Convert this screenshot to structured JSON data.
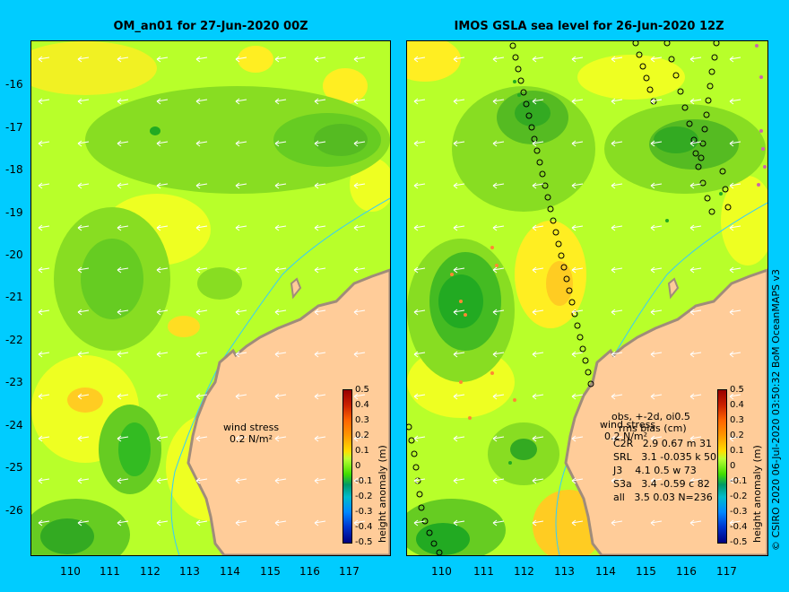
{
  "titles": {
    "left": "OM_an01 for 27-Jun-2020 00Z",
    "right": "IMOS GSLA sea level  for 26-Jun-2020 12Z"
  },
  "axes": {
    "lat_ticks": [
      "-16",
      "-17",
      "-18",
      "-19",
      "-20",
      "-21",
      "-22",
      "-23",
      "-24",
      "-25",
      "-26"
    ],
    "lon_ticks": [
      "110",
      "111",
      "112",
      "113",
      "114",
      "115",
      "116",
      "117"
    ]
  },
  "colorbar": {
    "title": "height anomaly (m)",
    "ticks": [
      "0.5",
      "0.4",
      "0.3",
      "0.2",
      "0.1",
      "0",
      "-0.1",
      "-0.2",
      "-0.3",
      "-0.4",
      "-0.5"
    ]
  },
  "wind_stress": {
    "label": "wind stress",
    "value": "0.2 N/m²"
  },
  "obs_stats": {
    "header": "obs, +-2d, oi0.5",
    "subheader": "rms bias (cm)",
    "rows": [
      "C2R   2.9 0.67 m 31",
      "SRL   3.1 -0.035 k 50",
      "J3    4.1 0.5 w 73",
      "S3a   3.4 -0.59 c 82",
      "all   3.5 0.03 N=236"
    ]
  },
  "credit": "© CSIRO 2020   06-Jul-2020 03:50:32 BoM OceanMAPS v3",
  "colors": {
    "background": "#00ccff",
    "land": "#ffcc99",
    "land_edge": "#b39b87",
    "coastline_depth": "#33ccff",
    "field_base": "#b8ff2a"
  }
}
